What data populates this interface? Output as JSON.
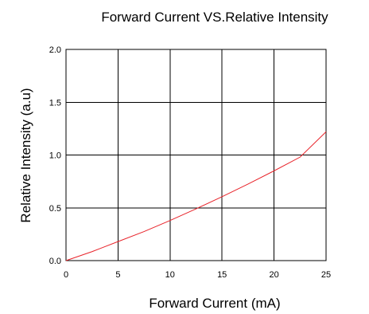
{
  "chart_data": {
    "type": "line",
    "title": "Forward Current VS.Relative Intensity",
    "xlabel": "Forward Current (mA)",
    "ylabel": "Relative Intensity (a.u)",
    "xlim": [
      0,
      25
    ],
    "ylim": [
      0,
      2.0
    ],
    "xticks": [
      "0",
      "5",
      "10",
      "15",
      "20",
      "25"
    ],
    "yticks": [
      "0.0",
      "0.5",
      "1.0",
      "1.5",
      "2.0"
    ],
    "grid": true,
    "series": [
      {
        "color": "#e8232a",
        "x": [
          0,
          2.5,
          5,
          7.5,
          10,
          12.5,
          15,
          17.5,
          20,
          22.5,
          25
        ],
        "y": [
          0.0,
          0.085,
          0.18,
          0.275,
          0.38,
          0.49,
          0.605,
          0.725,
          0.85,
          0.98,
          1.22
        ]
      }
    ]
  }
}
